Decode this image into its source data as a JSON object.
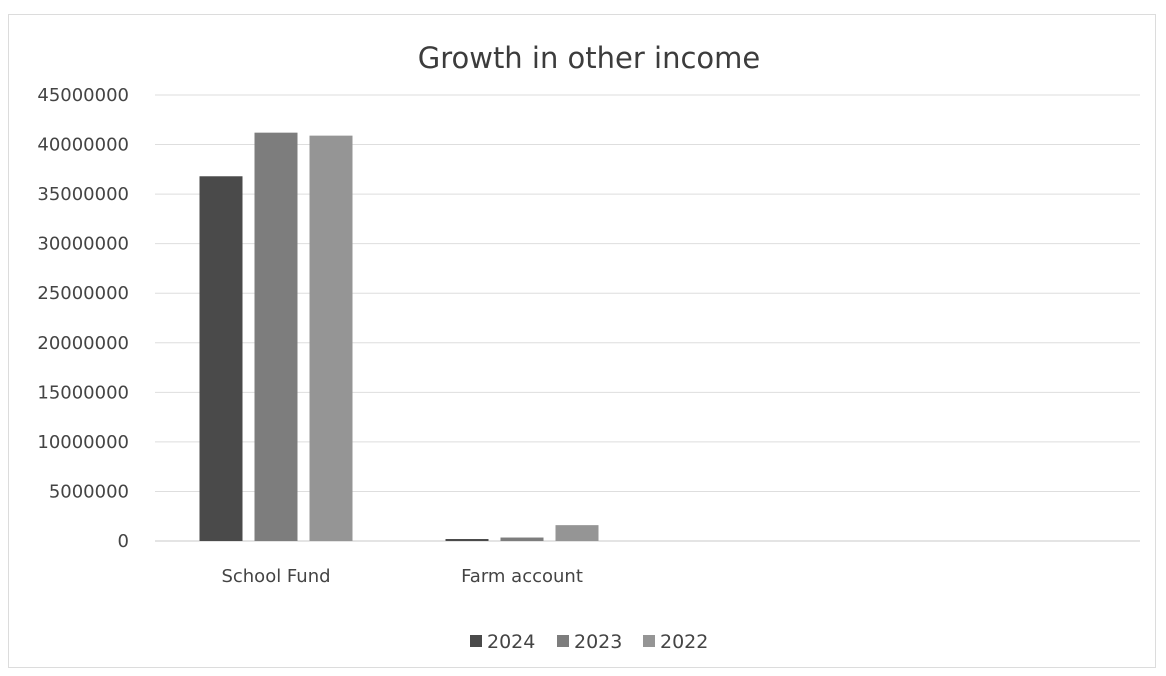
{
  "chart_data": {
    "type": "bar",
    "title": "Growth in other income",
    "xlabel": "",
    "ylabel": "",
    "categories": [
      "School Fund",
      "Farm account"
    ],
    "series": [
      {
        "name": "2024",
        "values": [
          36800000,
          200000
        ],
        "color": "#4a4a4a"
      },
      {
        "name": "2023",
        "values": [
          41200000,
          350000
        ],
        "color": "#7d7d7d"
      },
      {
        "name": "2022",
        "values": [
          40900000,
          1600000
        ],
        "color": "#959595"
      }
    ],
    "ylim": [
      0,
      45000000
    ],
    "yticks": [
      0,
      5000000,
      10000000,
      15000000,
      20000000,
      25000000,
      30000000,
      35000000,
      40000000,
      45000000
    ],
    "grid": true,
    "legend_position": "bottom"
  }
}
